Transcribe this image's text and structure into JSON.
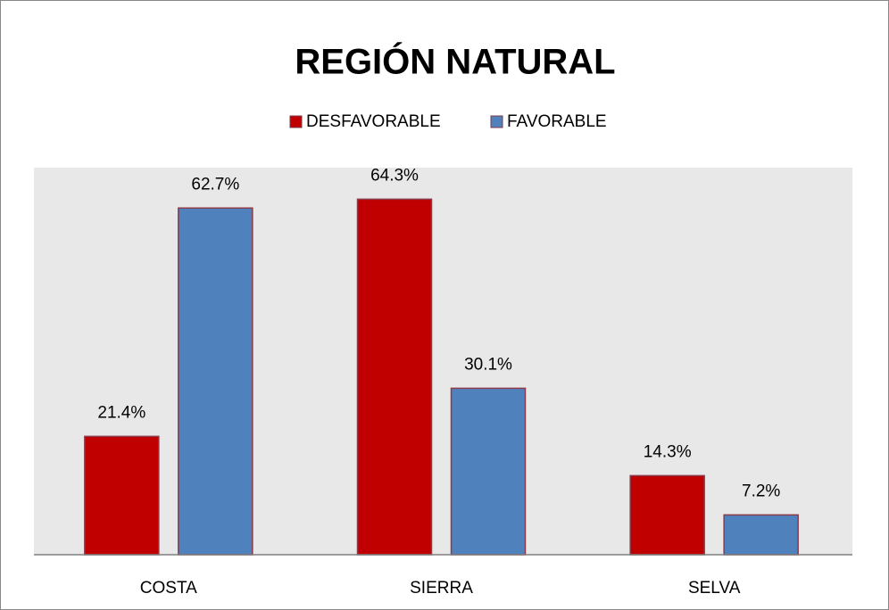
{
  "chart_data": {
    "type": "bar",
    "title": "REGIÓN NATURAL",
    "categories": [
      "COSTA",
      "SIERRA",
      "SELVA"
    ],
    "series": [
      {
        "name": "DESFAVORABLE",
        "color": "#c00000",
        "values": [
          21.4,
          64.3,
          14.3
        ],
        "value_labels": [
          "21.4%",
          "64.3%",
          "14.3%"
        ]
      },
      {
        "name": "FAVORABLE",
        "color": "#4f81bd",
        "values": [
          62.7,
          30.1,
          7.2
        ],
        "value_labels": [
          "62.7%",
          "30.1%",
          "7.2%"
        ]
      }
    ],
    "ylim": [
      0,
      70
    ],
    "legend": "top"
  }
}
